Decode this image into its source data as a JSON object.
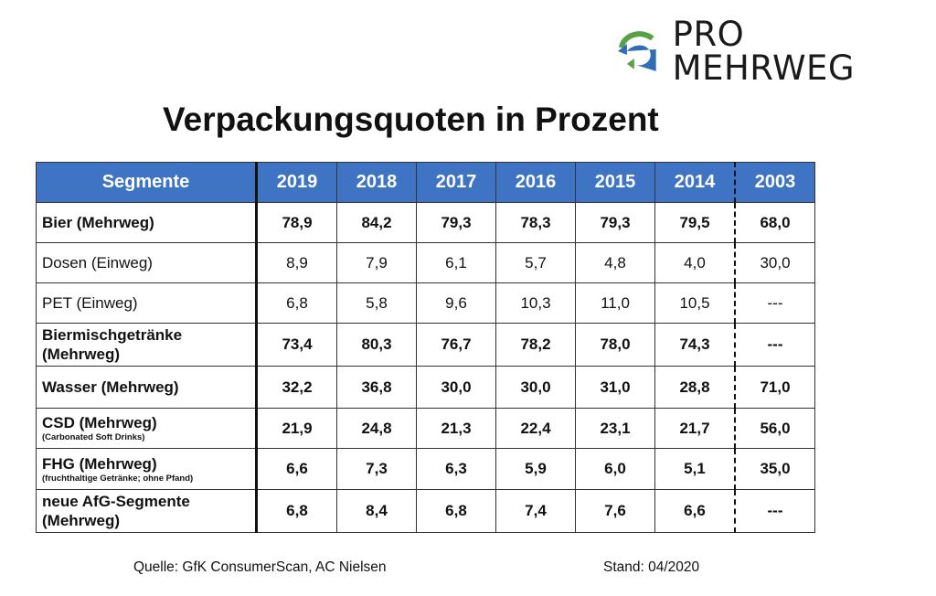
{
  "logo": {
    "text": "PRO MEHRWEG",
    "icon": "recycle-arrows-icon",
    "colors": {
      "green": "#5aa145",
      "blue": "#2f6db5"
    }
  },
  "title": "Verpackungsquoten in Prozent",
  "table": {
    "header_color": "#3f73c4",
    "columns": [
      "Segmente",
      "2019",
      "2018",
      "2017",
      "2016",
      "2015",
      "2014",
      "2003"
    ],
    "rows": [
      {
        "segment": "Bier (Mehrweg)",
        "sub": "",
        "bold": true,
        "values": [
          "78,9",
          "84,2",
          "79,3",
          "78,3",
          "79,3",
          "79,5",
          "68,0"
        ]
      },
      {
        "segment": "Dosen (Einweg)",
        "sub": "",
        "bold": false,
        "values": [
          "8,9",
          "7,9",
          "6,1",
          "5,7",
          "4,8",
          "4,0",
          "30,0"
        ]
      },
      {
        "segment": "PET (Einweg)",
        "sub": "",
        "bold": false,
        "values": [
          "6,8",
          "5,8",
          "9,6",
          "10,3",
          "11,0",
          "10,5",
          "---"
        ]
      },
      {
        "segment": "Biermischgetränke (Mehrweg)",
        "sub": "",
        "bold": true,
        "values": [
          "73,4",
          "80,3",
          "76,7",
          "78,2",
          "78,0",
          "74,3",
          "---"
        ]
      },
      {
        "segment": "Wasser (Mehrweg)",
        "sub": "",
        "bold": true,
        "values": [
          "32,2",
          "36,8",
          "30,0",
          "30,0",
          "31,0",
          "28,8",
          "71,0"
        ]
      },
      {
        "segment": "CSD (Mehrweg)",
        "sub": "(Carbonated Soft Drinks)",
        "bold": true,
        "values": [
          "21,9",
          "24,8",
          "21,3",
          "22,4",
          "23,1",
          "21,7",
          "56,0"
        ]
      },
      {
        "segment": "FHG (Mehrweg)",
        "sub": "(fruchthaltige Getränke; ohne Pfand)",
        "bold": true,
        "values": [
          "6,6",
          "7,3",
          "6,3",
          "5,9",
          "6,0",
          "5,1",
          "35,0"
        ]
      },
      {
        "segment": "neue AfG-Segmente (Mehrweg)",
        "sub": "",
        "bold": true,
        "values": [
          "6,8",
          "8,4",
          "6,8",
          "7,4",
          "7,6",
          "6,6",
          "---"
        ]
      }
    ]
  },
  "footer": {
    "source": "Quelle: GfK ConsumerScan, AC Nielsen",
    "date": "Stand: 04/2020"
  }
}
